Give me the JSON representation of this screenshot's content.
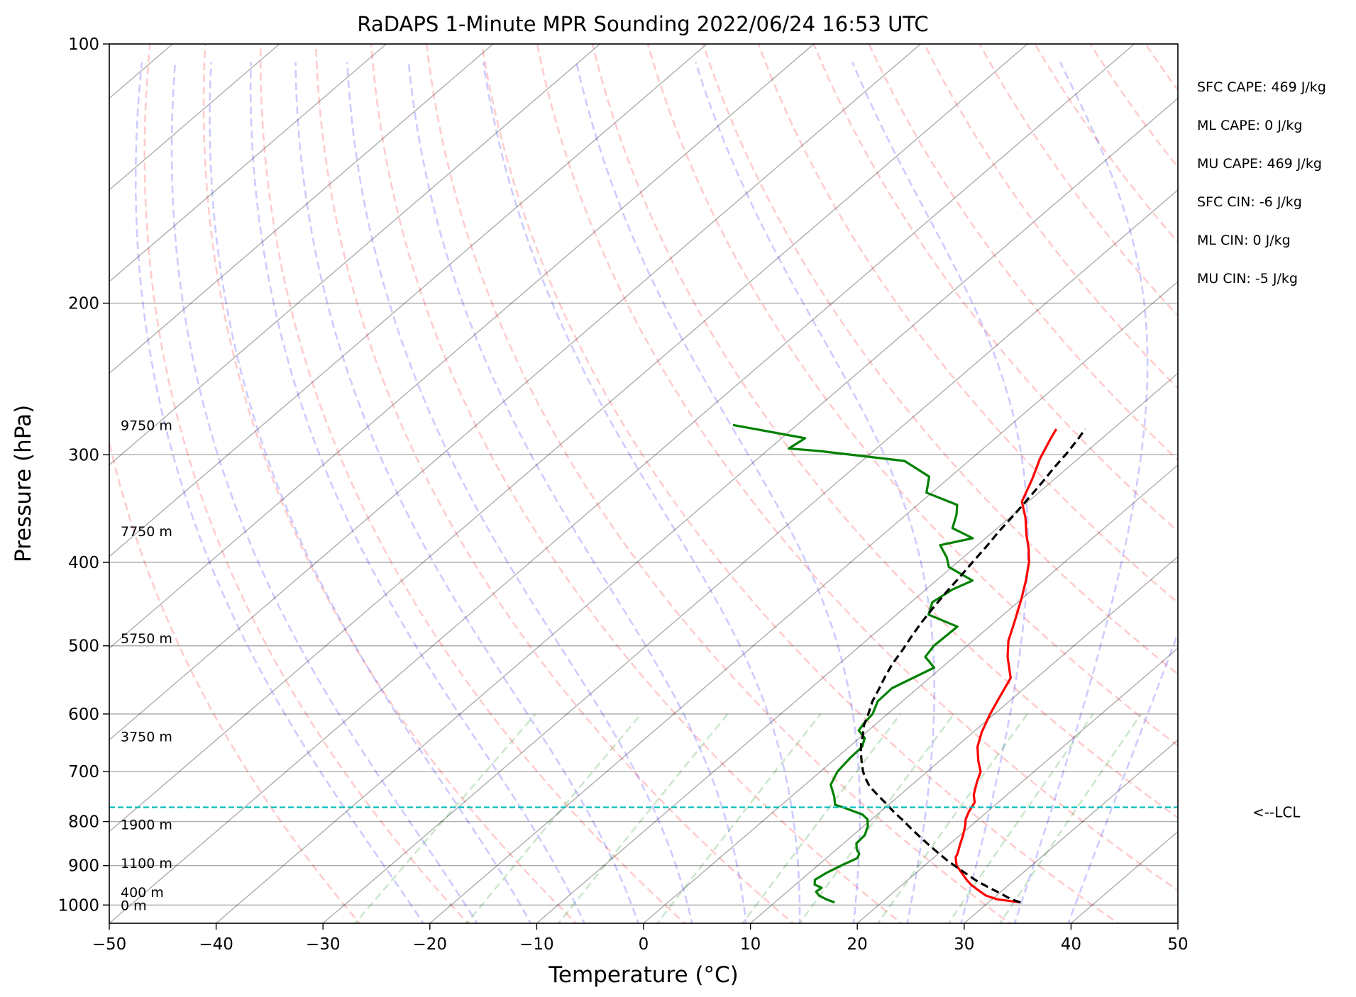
{
  "chart_data": {
    "type": "line",
    "title": "RaDAPS 1-Minute MPR Sounding 2022/06/24 16:53 UTC",
    "xlabel": "Temperature (°C)",
    "ylabel": "Pressure (hPa)",
    "xlim": [
      -50,
      50
    ],
    "ylim": [
      1050,
      100
    ],
    "y_scale": "log",
    "x_ticks": [
      -50,
      -40,
      -30,
      -20,
      -10,
      0,
      10,
      20,
      30,
      40,
      50
    ],
    "x_tick_labels": [
      "−50",
      "−40",
      "−30",
      "−20",
      "−10",
      "0",
      "10",
      "20",
      "30",
      "40",
      "50"
    ],
    "y_ticks": [
      100,
      200,
      300,
      400,
      500,
      600,
      700,
      800,
      900,
      1000
    ],
    "y_tick_labels": [
      "100",
      "200",
      "300",
      "400",
      "500",
      "600",
      "700",
      "800",
      "900",
      "1000"
    ],
    "grid": true,
    "series": [
      {
        "key": "temperature",
        "color": "#ff0000",
        "points": [
          [
            33.0,
            993
          ],
          [
            30.5,
            985
          ],
          [
            29.0,
            975
          ],
          [
            27.8,
            962
          ],
          [
            26.5,
            948
          ],
          [
            25.5,
            935
          ],
          [
            24.3,
            918
          ],
          [
            23.0,
            900
          ],
          [
            22.0,
            880
          ],
          [
            21.8,
            872
          ],
          [
            21.0,
            850
          ],
          [
            20.3,
            830
          ],
          [
            19.5,
            810
          ],
          [
            18.8,
            795
          ],
          [
            18.3,
            780
          ],
          [
            17.8,
            760
          ],
          [
            16.9,
            745
          ],
          [
            15.8,
            720
          ],
          [
            15.0,
            700
          ],
          [
            13.6,
            680
          ],
          [
            12.0,
            655
          ],
          [
            10.8,
            630
          ],
          [
            9.6,
            600
          ],
          [
            8.7,
            575
          ],
          [
            7.6,
            545
          ],
          [
            5.0,
            515
          ],
          [
            3.3,
            493
          ],
          [
            1.9,
            470
          ],
          [
            -0.1,
            440
          ],
          [
            -1.6,
            420
          ],
          [
            -3.3,
            400
          ],
          [
            -4.9,
            385
          ],
          [
            -6.5,
            372
          ],
          [
            -8.5,
            355
          ],
          [
            -10.6,
            340
          ],
          [
            -12.1,
            320
          ],
          [
            -13.6,
            303
          ],
          [
            -14.8,
            287
          ],
          [
            -15.3,
            280
          ]
        ]
      },
      {
        "key": "dewpoint",
        "color": "#008000",
        "points": [
          [
            15.6,
            993
          ],
          [
            14.5,
            985
          ],
          [
            13.4,
            975
          ],
          [
            12.7,
            965
          ],
          [
            12.8,
            955
          ],
          [
            11.8,
            947
          ],
          [
            11.3,
            935
          ],
          [
            11.6,
            918
          ],
          [
            12.2,
            900
          ],
          [
            12.9,
            882
          ],
          [
            12.6,
            872
          ],
          [
            11.9,
            862
          ],
          [
            11.2,
            848
          ],
          [
            11.1,
            830
          ],
          [
            10.4,
            810
          ],
          [
            9.6,
            795
          ],
          [
            8.6,
            785
          ],
          [
            6.0,
            770
          ],
          [
            5.0,
            765
          ],
          [
            4.0,
            748
          ],
          [
            2.4,
            725
          ],
          [
            1.6,
            700
          ],
          [
            1.3,
            675
          ],
          [
            1.2,
            655
          ],
          [
            0.5,
            640
          ],
          [
            -0.9,
            627
          ],
          [
            -1.2,
            615
          ],
          [
            -1.4,
            600
          ],
          [
            -2.3,
            580
          ],
          [
            -2.4,
            560
          ],
          [
            -0.7,
            530
          ],
          [
            -2.7,
            515
          ],
          [
            -3.1,
            500
          ],
          [
            -3.0,
            475
          ],
          [
            -7.0,
            460
          ],
          [
            -8.0,
            445
          ],
          [
            -7.5,
            430
          ],
          [
            -6.6,
            420
          ],
          [
            -10.3,
            405
          ],
          [
            -11.5,
            395
          ],
          [
            -13.5,
            382
          ],
          [
            -11.2,
            375
          ],
          [
            -14.2,
            365
          ],
          [
            -15.3,
            352
          ],
          [
            -16.3,
            343
          ],
          [
            -20.5,
            332
          ],
          [
            -22.0,
            318
          ],
          [
            -26.0,
            305
          ],
          [
            -35.0,
            297
          ],
          [
            -38.2,
            295
          ],
          [
            -37.8,
            287
          ],
          [
            -46.0,
            277
          ]
        ]
      },
      {
        "key": "parcel",
        "color": "#000000",
        "points": [
          [
            33.0,
            993
          ],
          [
            31.8,
            985
          ],
          [
            30.2,
            970
          ],
          [
            28.5,
            955
          ],
          [
            26.8,
            940
          ],
          [
            25.0,
            922
          ],
          [
            23.3,
            905
          ],
          [
            21.6,
            888
          ],
          [
            19.9,
            870
          ],
          [
            18.1,
            851
          ],
          [
            16.4,
            833
          ],
          [
            14.7,
            815
          ],
          [
            13.0,
            797
          ],
          [
            11.3,
            780
          ],
          [
            9.6,
            762
          ],
          [
            7.9,
            745
          ],
          [
            6.2,
            728
          ],
          [
            4.9,
            712
          ],
          [
            4.0,
            700
          ],
          [
            2.8,
            682
          ],
          [
            1.7,
            665
          ],
          [
            0.8,
            650
          ],
          [
            0.0,
            635
          ],
          [
            -1.0,
            618
          ],
          [
            -1.8,
            600
          ],
          [
            -2.8,
            580
          ],
          [
            -3.5,
            562
          ],
          [
            -4.3,
            543
          ],
          [
            -5.0,
            525
          ],
          [
            -5.6,
            505
          ],
          [
            -6.2,
            488
          ],
          [
            -6.8,
            470
          ],
          [
            -7.3,
            452
          ],
          [
            -7.8,
            433
          ],
          [
            -8.2,
            415
          ],
          [
            -8.6,
            400
          ],
          [
            -9.0,
            384
          ],
          [
            -9.5,
            368
          ],
          [
            -9.9,
            352
          ],
          [
            -10.3,
            338
          ],
          [
            -10.8,
            323
          ],
          [
            -11.3,
            310
          ],
          [
            -11.7,
            298
          ],
          [
            -12.2,
            287
          ],
          [
            -12.6,
            280
          ]
        ]
      }
    ],
    "lcl": {
      "pressure": 770,
      "label": "<--LCL",
      "color": "#00bbbb"
    },
    "height_labels": [
      {
        "pressure": 277,
        "text": "9750 m"
      },
      {
        "pressure": 368,
        "text": "7750 m"
      },
      {
        "pressure": 490,
        "text": "5750 m"
      },
      {
        "pressure": 637,
        "text": "3750 m"
      },
      {
        "pressure": 806,
        "text": "1900 m"
      },
      {
        "pressure": 894,
        "text": "1100 m"
      },
      {
        "pressure": 966,
        "text": "400 m"
      },
      {
        "pressure": 1000,
        "text": "0 m"
      }
    ],
    "annotations": [
      "SFC CAPE: 469 J/kg",
      "ML CAPE: 0 J/kg",
      "MU CAPE: 469 J/kg",
      "SFC CIN: -6 J/kg",
      "ML CIN: 0 J/kg",
      "MU CIN: -5 J/kg"
    ]
  }
}
